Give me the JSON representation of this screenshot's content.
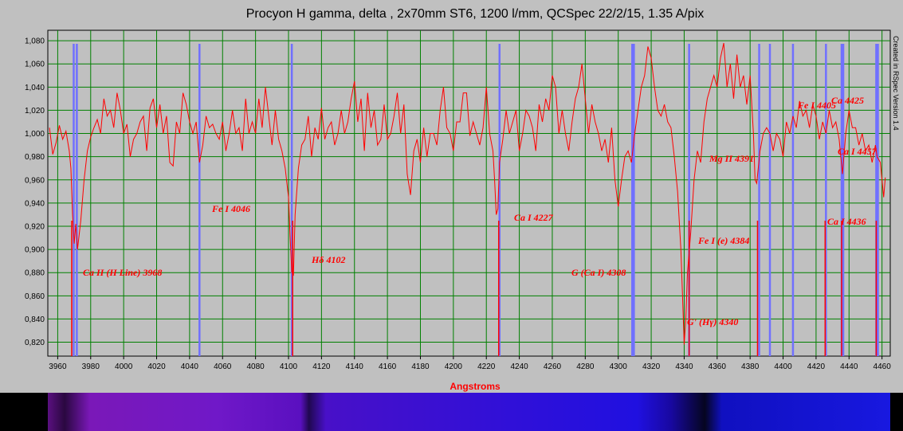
{
  "chart_data": {
    "type": "line",
    "title": "Procyon H gamma, delta , 2x70mm ST6, 1200 l/mm, QCSpec 22/2/15, 1.35 A/pix",
    "x_label": "Angstroms",
    "side_note": "Created in RSpec Version 1.4",
    "xlim": [
      3954,
      4465
    ],
    "ylim": [
      0.808,
      1.089
    ],
    "grid": true,
    "grid_color": "#008000",
    "xticks": [
      3960,
      3980,
      4000,
      4020,
      4040,
      4060,
      4080,
      4100,
      4120,
      4140,
      4160,
      4180,
      4200,
      4220,
      4240,
      4260,
      4280,
      4300,
      4320,
      4340,
      4360,
      4380,
      4400,
      4420,
      4440,
      4460
    ],
    "yticks": [
      {
        "value": 0.82,
        "label": "0,820"
      },
      {
        "value": 0.84,
        "label": "0,840"
      },
      {
        "value": 0.86,
        "label": "0,860"
      },
      {
        "value": 0.88,
        "label": "0,880"
      },
      {
        "value": 0.9,
        "label": "0,900"
      },
      {
        "value": 0.92,
        "label": "0,920"
      },
      {
        "value": 0.94,
        "label": "0,940"
      },
      {
        "value": 0.96,
        "label": "0,960"
      },
      {
        "value": 0.98,
        "label": "0,980"
      },
      {
        "value": 1.0,
        "label": "1,000"
      },
      {
        "value": 1.02,
        "label": "1,020"
      },
      {
        "value": 1.04,
        "label": "1,040"
      },
      {
        "value": 1.06,
        "label": "1,060"
      },
      {
        "value": 1.08,
        "label": "1,080"
      }
    ],
    "marker_lines": [
      3969.7,
      3971.6,
      4046,
      4102,
      4228,
      4308.5,
      4309.5,
      4343,
      4385.5,
      4392,
      4406,
      4426,
      4435.5,
      4436.5,
      4456.5,
      4457.5
    ],
    "marker_color": "#7070ff",
    "line_markers": [
      3968.5,
      4102.5,
      4227.5,
      4343,
      4384.5,
      4425.5,
      4435.5,
      4456.5
    ],
    "line_marker_color": "#ff0000",
    "annotations": [
      "Ca II (H Line) 3968",
      "Fe I 4046",
      "Hδ 4102",
      "Ca I 4227",
      "G (Ca I) 4308",
      "G' (Hγ) 4340",
      "Fe I (e) 4384",
      "Mg II 4391",
      "Fe I 4405",
      "Ca    4425",
      "Ca I 4457",
      "Ca I 4436"
    ],
    "x": [
      3955,
      3957,
      3959,
      3961,
      3963,
      3965,
      3967,
      3968,
      3969,
      3970,
      3971,
      3972,
      3974,
      3976,
      3978,
      3980,
      3982,
      3984,
      3986,
      3988,
      3990,
      3992,
      3994,
      3996,
      3998,
      4000,
      4002,
      4004,
      4006,
      4008,
      4010,
      4012,
      4014,
      4016,
      4018,
      4020,
      4022,
      4024,
      4026,
      4028,
      4030,
      4032,
      4034,
      4036,
      4038,
      4040,
      4042,
      4044,
      4046,
      4048,
      4050,
      4052,
      4054,
      4056,
      4058,
      4060,
      4062,
      4064,
      4066,
      4068,
      4070,
      4072,
      4074,
      4076,
      4078,
      4080,
      4082,
      4084,
      4086,
      4088,
      4090,
      4092,
      4094,
      4096,
      4098,
      4100,
      4101,
      4102,
      4103,
      4104,
      4106,
      4108,
      4110,
      4112,
      4114,
      4116,
      4118,
      4120,
      4122,
      4124,
      4126,
      4128,
      4130,
      4132,
      4134,
      4136,
      4138,
      4140,
      4142,
      4144,
      4146,
      4148,
      4150,
      4152,
      4154,
      4156,
      4158,
      4160,
      4162,
      4164,
      4166,
      4168,
      4170,
      4172,
      4174,
      4176,
      4178,
      4180,
      4182,
      4184,
      4186,
      4188,
      4190,
      4192,
      4194,
      4196,
      4198,
      4200,
      4202,
      4204,
      4206,
      4208,
      4210,
      4212,
      4214,
      4216,
      4218,
      4220,
      4222,
      4224,
      4225,
      4226,
      4227,
      4228,
      4230,
      4232,
      4234,
      4236,
      4238,
      4240,
      4242,
      4244,
      4246,
      4248,
      4250,
      4252,
      4254,
      4256,
      4258,
      4260,
      4262,
      4264,
      4266,
      4268,
      4270,
      4272,
      4274,
      4276,
      4278,
      4280,
      4282,
      4284,
      4286,
      4288,
      4290,
      4292,
      4294,
      4296,
      4298,
      4300,
      4302,
      4304,
      4306,
      4308,
      4310,
      4312,
      4314,
      4316,
      4318,
      4320,
      4322,
      4324,
      4326,
      4328,
      4330,
      4332,
      4334,
      4336,
      4338,
      4339,
      4340,
      4341,
      4342,
      4344,
      4346,
      4348,
      4350,
      4352,
      4354,
      4356,
      4358,
      4360,
      4362,
      4364,
      4366,
      4368,
      4370,
      4372,
      4374,
      4376,
      4378,
      4380,
      4382,
      4383,
      4384,
      4386,
      4388,
      4390,
      4392,
      4394,
      4396,
      4398,
      4400,
      4402,
      4404,
      4406,
      4408,
      4410,
      4412,
      4414,
      4416,
      4418,
      4420,
      4422,
      4424,
      4426,
      4428,
      4430,
      4432,
      4434,
      4436,
      4438,
      4440,
      4442,
      4444,
      4446,
      4448,
      4450,
      4452,
      4454,
      4456,
      4457,
      4459,
      4461,
      4462
    ],
    "series": [
      {
        "color": "#ff0000",
        "values": [
          1.005,
          0.982,
          0.992,
          1.007,
          0.995,
          1.002,
          0.985,
          0.97,
          0.93,
          0.905,
          0.922,
          0.9,
          0.925,
          0.96,
          0.985,
          0.997,
          1.005,
          1.012,
          1.0,
          1.03,
          1.015,
          1.02,
          1.005,
          1.035,
          1.02,
          1.0,
          1.008,
          0.98,
          0.995,
          1.0,
          1.01,
          1.015,
          0.985,
          1.022,
          1.03,
          1.005,
          1.025,
          1.0,
          1.015,
          0.975,
          0.972,
          1.01,
          1.0,
          1.035,
          1.025,
          1.01,
          1.0,
          1.01,
          0.975,
          0.99,
          1.015,
          1.005,
          1.008,
          1.0,
          0.995,
          1.01,
          0.985,
          1.0,
          1.02,
          1.0,
          1.005,
          0.985,
          1.03,
          1.0,
          1.01,
          1.0,
          1.03,
          1.005,
          1.04,
          1.015,
          0.99,
          1.02,
          0.995,
          0.985,
          0.97,
          0.945,
          0.91,
          0.88,
          0.878,
          0.93,
          0.97,
          0.99,
          0.995,
          1.015,
          0.98,
          1.005,
          0.995,
          1.022,
          0.995,
          1.005,
          1.01,
          0.99,
          1.0,
          1.02,
          1.0,
          1.01,
          1.03,
          1.045,
          1.01,
          1.03,
          0.985,
          1.035,
          1.005,
          1.02,
          0.99,
          0.995,
          1.025,
          0.995,
          1.0,
          1.015,
          1.035,
          1.0,
          1.025,
          0.965,
          0.947,
          0.985,
          0.995,
          0.975,
          1.005,
          0.98,
          1.0,
          1.0,
          0.99,
          1.02,
          1.04,
          1.005,
          1.0,
          0.985,
          1.01,
          1.01,
          1.035,
          1.035,
          0.998,
          1.01,
          1.0,
          0.99,
          1.005,
          1.04,
          1.0,
          0.985,
          0.96,
          0.93,
          0.935,
          0.975,
          0.995,
          1.02,
          1.0,
          1.01,
          1.02,
          0.985,
          1.0,
          1.02,
          1.015,
          1.005,
          0.985,
          1.025,
          1.01,
          1.03,
          1.02,
          1.05,
          1.04,
          1.0,
          1.02,
          1.0,
          0.985,
          1.01,
          1.03,
          1.04,
          1.06,
          1.03,
          1.0,
          1.025,
          1.01,
          1.0,
          0.985,
          0.995,
          0.975,
          1.005,
          0.96,
          0.937,
          0.96,
          0.98,
          0.985,
          0.975,
          1.0,
          1.02,
          1.04,
          1.05,
          1.075,
          1.065,
          1.04,
          1.02,
          1.015,
          1.025,
          1.01,
          1.005,
          0.98,
          0.95,
          0.9,
          0.86,
          0.818,
          0.84,
          0.88,
          0.915,
          0.96,
          0.985,
          0.975,
          1.01,
          1.03,
          1.04,
          1.05,
          1.04,
          1.065,
          1.078,
          1.04,
          1.06,
          1.03,
          1.068,
          1.04,
          1.05,
          1.025,
          1.05,
          1.0,
          0.96,
          0.957,
          0.985,
          1.0,
          1.005,
          1.0,
          0.985,
          1.0,
          0.995,
          0.98,
          1.01,
          1.0,
          1.015,
          1.005,
          1.028,
          1.015,
          1.02,
          1.005,
          1.025,
          1.015,
          0.995,
          1.01,
          1.0,
          1.02,
          1.005,
          1.01,
          0.995,
          0.965,
          1.0,
          1.02,
          1.005,
          1.005,
          0.99,
          1.0,
          0.985,
          0.99,
          0.975,
          0.99,
          0.98,
          0.975,
          0.945,
          0.962
        ]
      }
    ]
  }
}
